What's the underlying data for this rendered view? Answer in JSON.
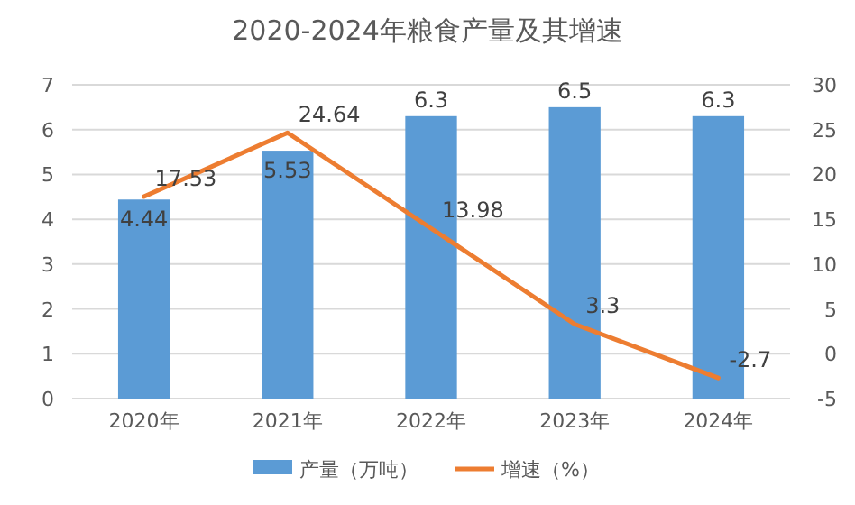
{
  "chart_data": {
    "type": "bar",
    "title": "2020-2024年粮食产量及其增速",
    "categories": [
      "2020年",
      "2021年",
      "2022年",
      "2023年",
      "2024年"
    ],
    "series": [
      {
        "name": "产量（万吨）",
        "color": "#5b9bd5",
        "values": [
          4.44,
          5.53,
          6.3,
          6.5,
          6.3
        ]
      },
      {
        "name": "增速（%）",
        "type": "line",
        "axis": "y2",
        "color": "#ed7d31",
        "values": [
          17.53,
          24.64,
          13.98,
          3.3,
          -2.7
        ]
      }
    ],
    "ylim": [
      0,
      7
    ],
    "yticks": [
      0,
      1,
      2,
      3,
      4,
      5,
      6,
      7
    ],
    "y2lim": [
      -5,
      30
    ],
    "y2ticks": [
      -5,
      0,
      5,
      10,
      15,
      20,
      25,
      30
    ],
    "grid": "y",
    "legend": "bottom",
    "data_labels": true,
    "marker": "none"
  }
}
